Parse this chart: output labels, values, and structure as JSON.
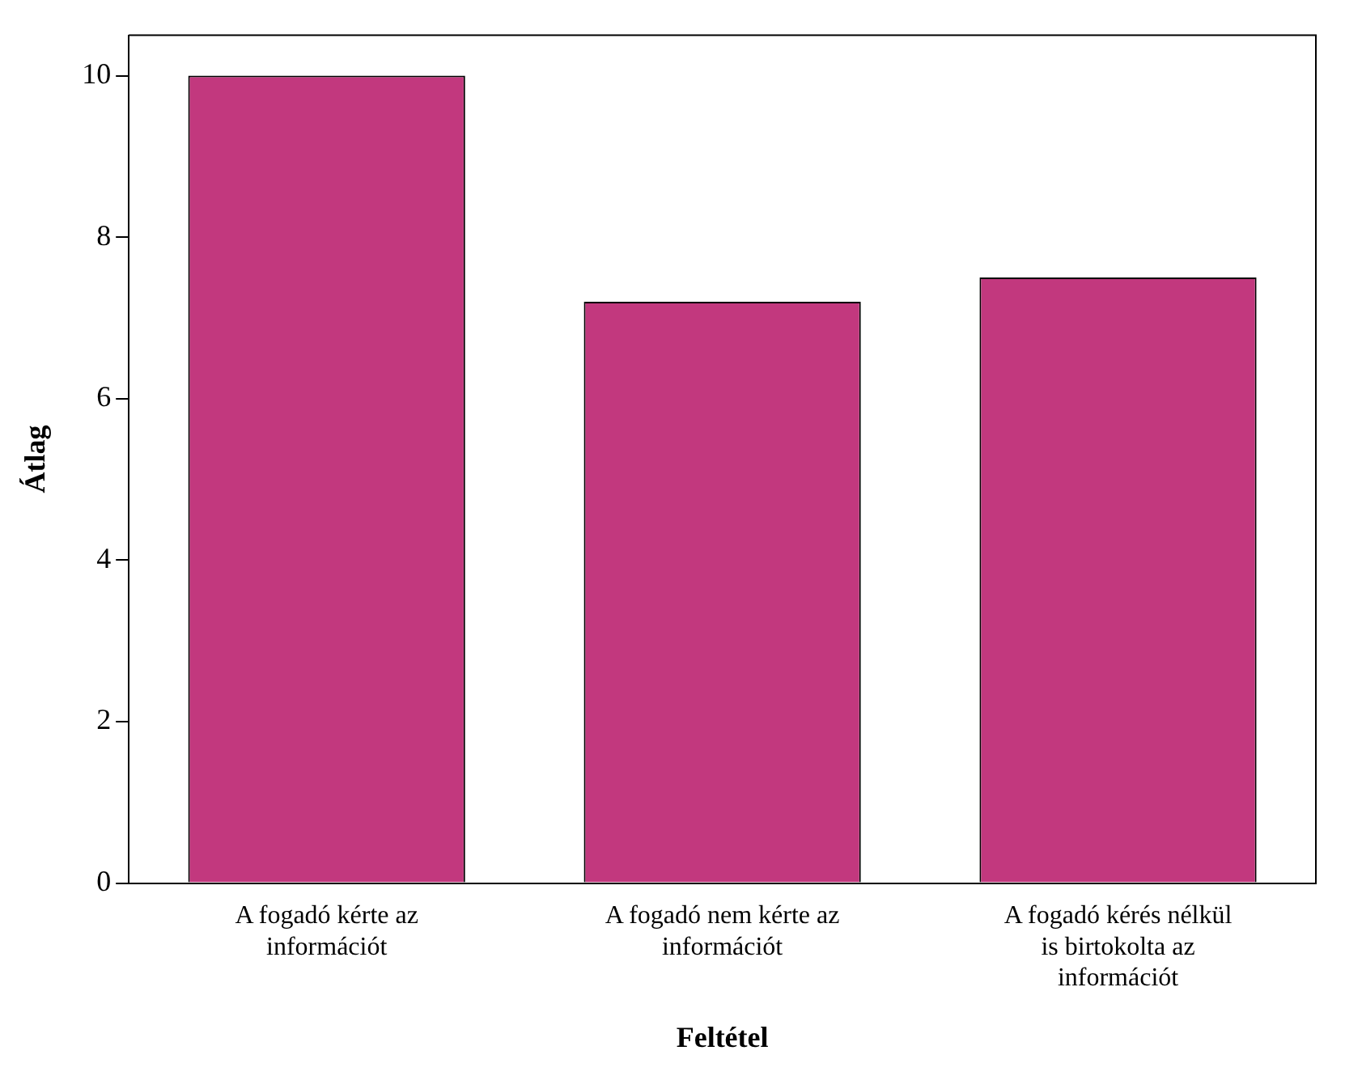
{
  "chart_data": {
    "type": "bar",
    "xlabel": "Feltétel",
    "ylabel": "Átlag",
    "categories": [
      "A fogadó kérte az információt",
      "A fogadó nem kérte az információt",
      "A fogadó kérés nélkül is birtokolta az információt"
    ],
    "values": [
      10,
      7.2,
      7.5
    ],
    "color": "#c2387e",
    "ylim": [
      0,
      10.5
    ],
    "yticks": [
      0,
      2,
      4,
      6,
      8,
      10
    ],
    "grid": false,
    "legend": false
  }
}
